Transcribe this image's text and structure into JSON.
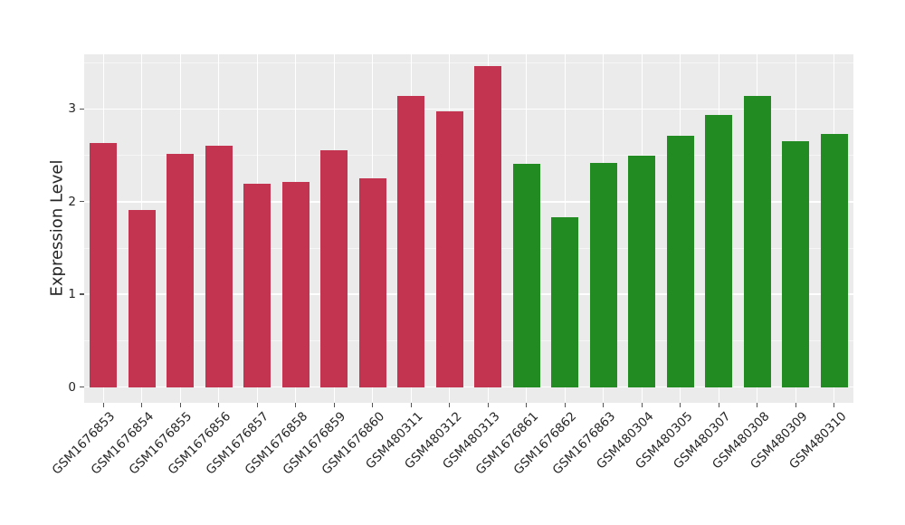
{
  "chart_data": {
    "type": "bar",
    "title": "",
    "xlabel": "",
    "ylabel": "Expression Level",
    "categories": [
      "GSM1676853",
      "GSM1676854",
      "GSM1676855",
      "GSM1676856",
      "GSM1676857",
      "GSM1676858",
      "GSM1676859",
      "GSM1676860",
      "GSM480311",
      "GSM480312",
      "GSM480313",
      "GSM1676861",
      "GSM1676862",
      "GSM1676863",
      "GSM480304",
      "GSM480305",
      "GSM480307",
      "GSM480308",
      "GSM480309",
      "GSM480310"
    ],
    "values": [
      2.63,
      1.91,
      2.52,
      2.6,
      2.19,
      2.21,
      2.55,
      2.25,
      3.14,
      2.97,
      3.46,
      2.41,
      1.83,
      2.42,
      2.5,
      2.71,
      2.94,
      3.14,
      2.65,
      2.73
    ],
    "bar_colors": [
      "#C23450",
      "#C23450",
      "#C23450",
      "#C23450",
      "#C23450",
      "#C23450",
      "#C23450",
      "#C23450",
      "#C23450",
      "#C23450",
      "#C23450",
      "#228B22",
      "#228B22",
      "#228B22",
      "#228B22",
      "#228B22",
      "#228B22",
      "#228B22",
      "#228B22",
      "#228B22"
    ],
    "group_colors": {
      "red_group": "#C23450",
      "green_group": "#228B22"
    },
    "yticks": [
      "0",
      "1",
      "2",
      "3"
    ],
    "ytick_values": [
      0,
      1,
      2,
      3
    ],
    "minor_ytick_values": [
      0.5,
      1.5,
      2.5,
      3.5
    ],
    "ylim": [
      -0.17,
      3.59
    ],
    "grid": true,
    "legend": "none",
    "panel_background": "#EBEBEB",
    "grid_color": "#FFFFFF",
    "tick_color": "#555555",
    "text_color": "#262626"
  }
}
